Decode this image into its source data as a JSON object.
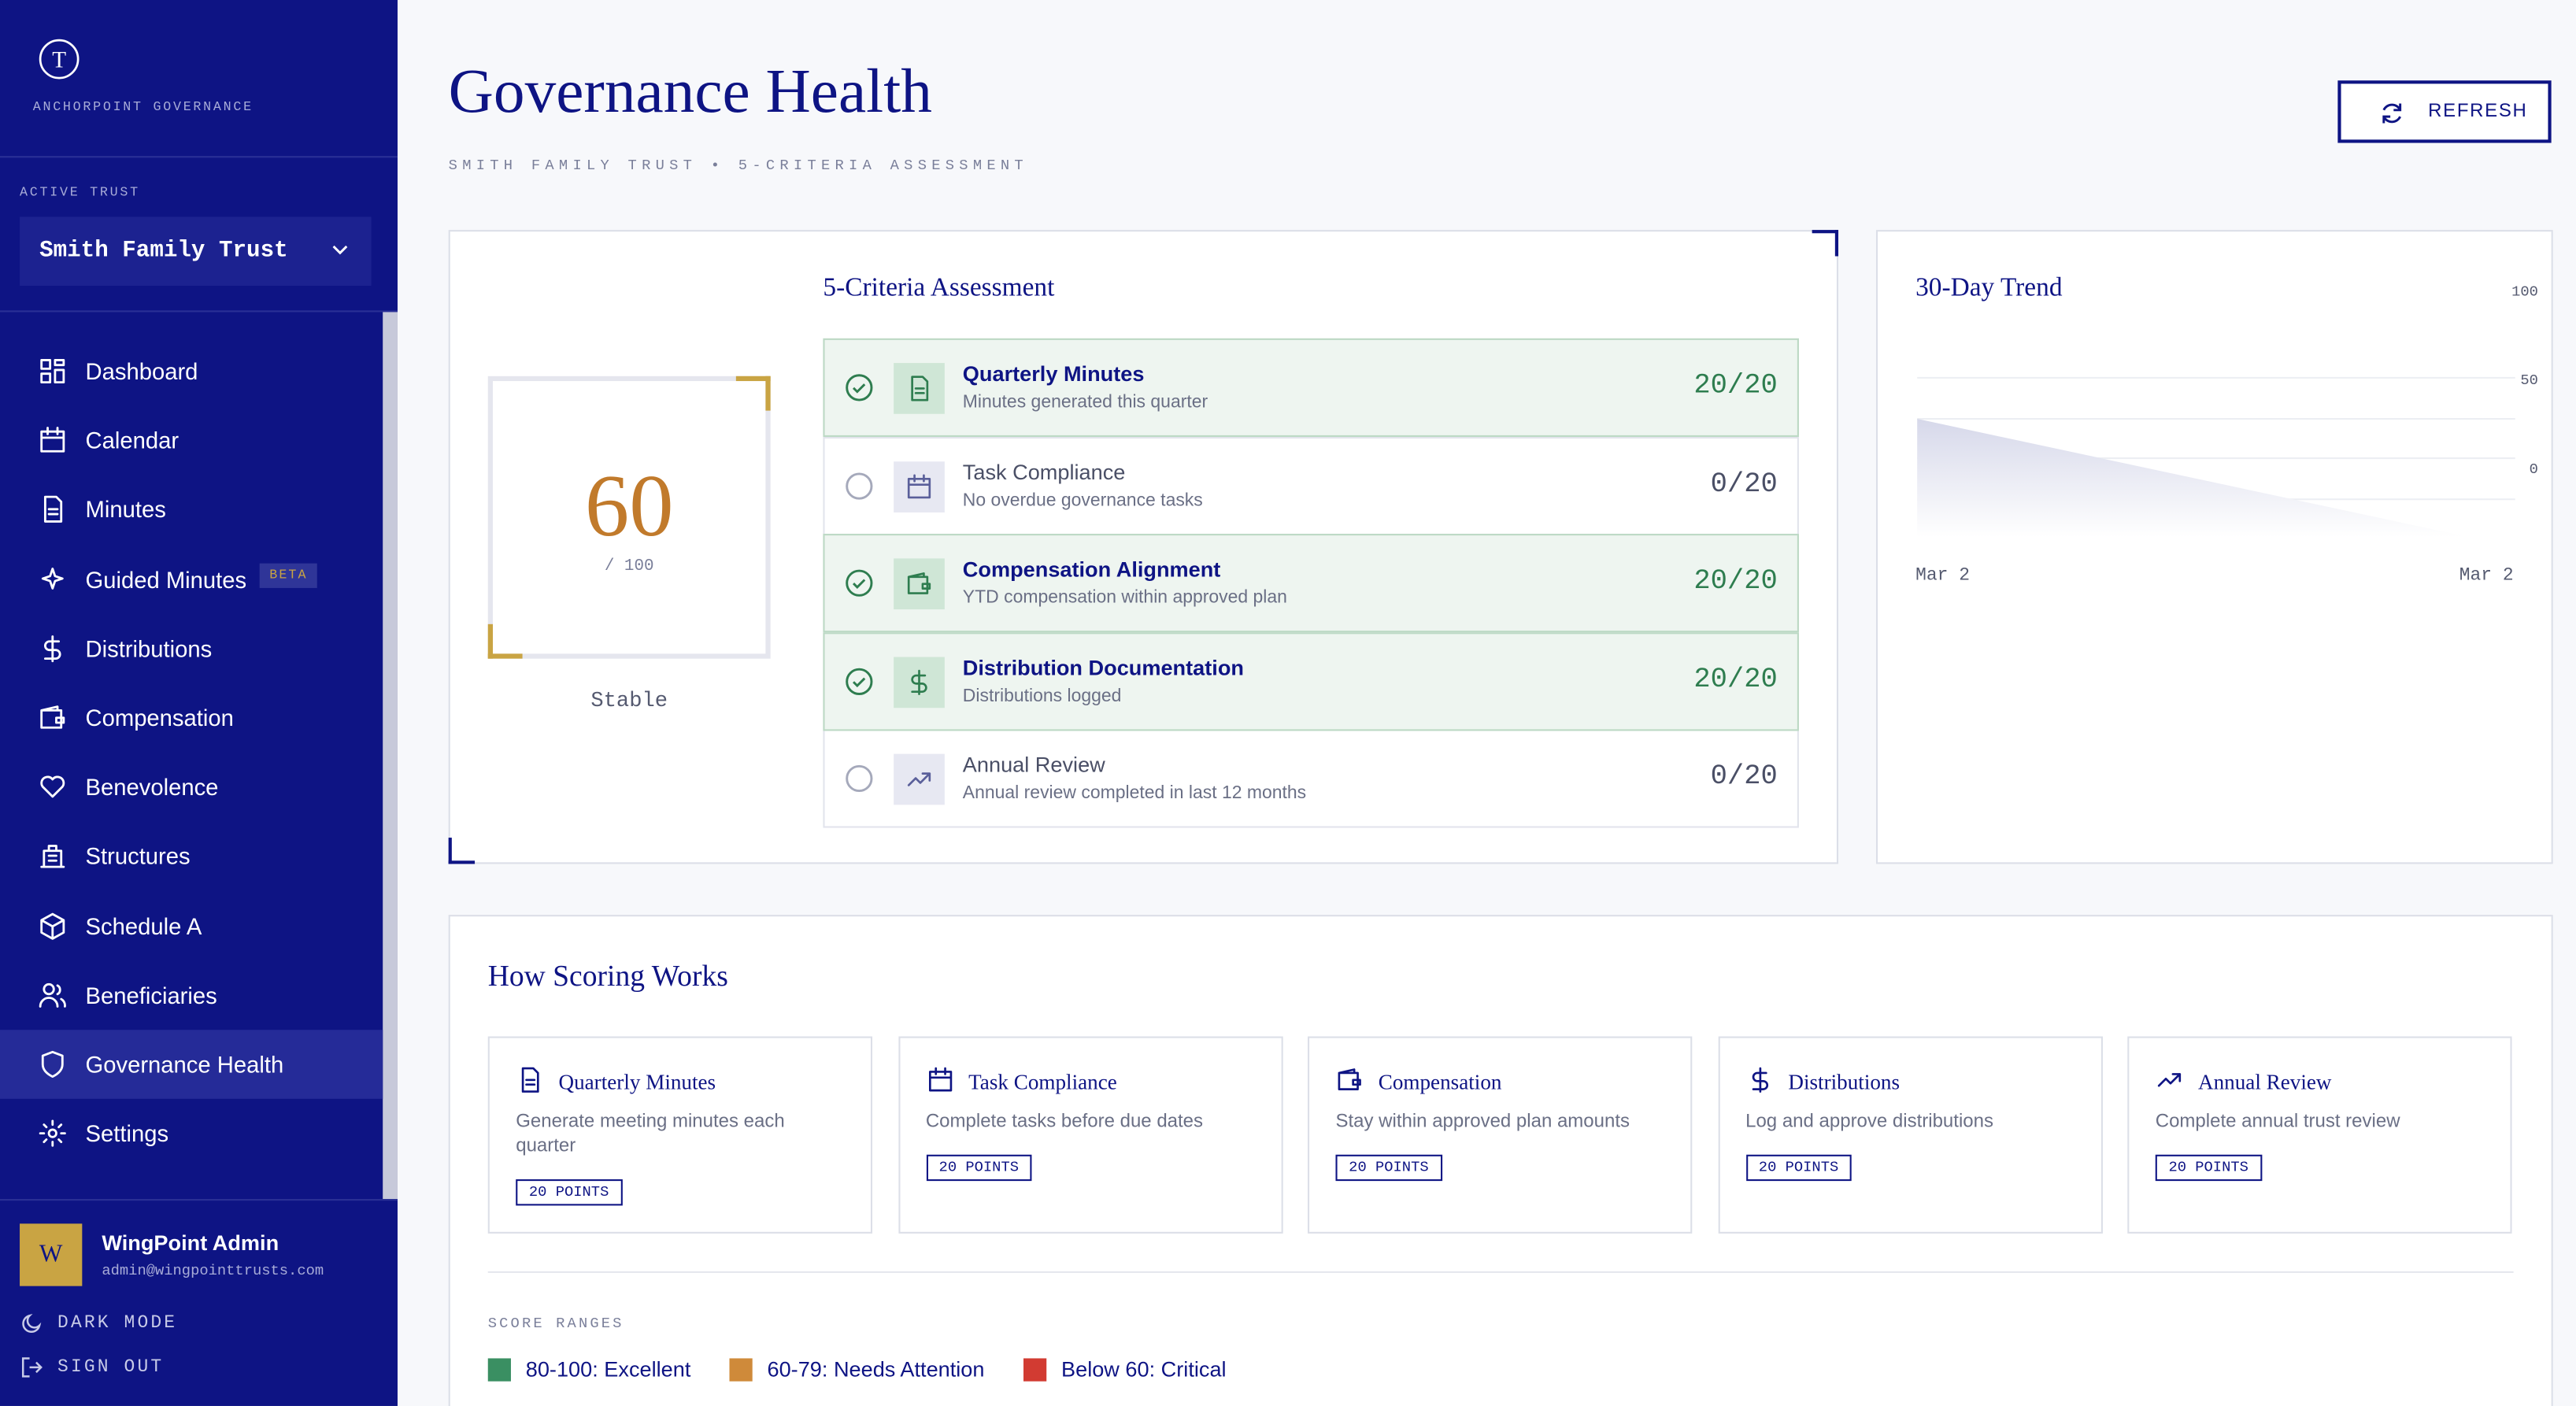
{
  "sidebar": {
    "brand": "ANCHORPOINT GOVERNANCE",
    "active_trust_label": "ACTIVE TRUST",
    "active_trust": "Smith Family Trust",
    "nav": [
      {
        "label": "Dashboard"
      },
      {
        "label": "Calendar"
      },
      {
        "label": "Minutes"
      },
      {
        "label": "Guided Minutes",
        "badge": "BETA"
      },
      {
        "label": "Distributions"
      },
      {
        "label": "Compensation"
      },
      {
        "label": "Benevolence"
      },
      {
        "label": "Structures"
      },
      {
        "label": "Schedule A"
      },
      {
        "label": "Beneficiaries"
      },
      {
        "label": "Governance Health",
        "active": true
      },
      {
        "label": "Settings"
      }
    ],
    "user": {
      "initial": "W",
      "name": "WingPoint Admin",
      "email": "admin@wingpointtrusts.com"
    },
    "dark_mode": "DARK MODE",
    "sign_out": "SIGN OUT"
  },
  "header": {
    "title": "Governance Health",
    "subtitle": "SMITH FAMILY TRUST • 5-CRITERIA ASSESSMENT",
    "refresh": "REFRESH"
  },
  "score": {
    "value": 60,
    "max": "/ 100",
    "status": "Stable"
  },
  "criteria": {
    "title": "5-Criteria Assessment",
    "items": [
      {
        "name": "Quarterly Minutes",
        "description": "Minutes generated this quarter",
        "score": "20/20",
        "met": true
      },
      {
        "name": "Task Compliance",
        "description": "No overdue governance tasks",
        "score": "0/20",
        "met": false
      },
      {
        "name": "Compensation Alignment",
        "description": "YTD compensation within approved plan",
        "score": "20/20",
        "met": true
      },
      {
        "name": "Distribution Documentation",
        "description": "Distributions logged",
        "score": "20/20",
        "met": true
      },
      {
        "name": "Annual Review",
        "description": "Annual review completed in last 12 months",
        "score": "0/20",
        "met": false
      }
    ]
  },
  "trend": {
    "title": "30-Day Trend",
    "yticks": [
      100,
      50,
      0
    ],
    "x_labels": [
      "Mar 2",
      "Mar 2"
    ]
  },
  "scoring": {
    "title": "How Scoring Works",
    "cards": [
      {
        "title": "Quarterly Minutes",
        "description": "Generate meeting minutes each quarter",
        "points": "20 POINTS"
      },
      {
        "title": "Task Compliance",
        "description": "Complete tasks before due dates",
        "points": "20 POINTS"
      },
      {
        "title": "Compensation",
        "description": "Stay within approved plan amounts",
        "points": "20 POINTS"
      },
      {
        "title": "Distributions",
        "description": "Log and approve distributions",
        "points": "20 POINTS"
      },
      {
        "title": "Annual Review",
        "description": "Complete annual trust review",
        "points": "20 POINTS"
      }
    ],
    "ranges_label": "SCORE RANGES",
    "ranges": [
      {
        "label": "80-100: Excellent",
        "color": "#3a8f62"
      },
      {
        "label": "60-79: Needs Attention",
        "color": "#cf8a3a"
      },
      {
        "label": "Below 60: Critical",
        "color": "#d23b32"
      }
    ]
  }
}
